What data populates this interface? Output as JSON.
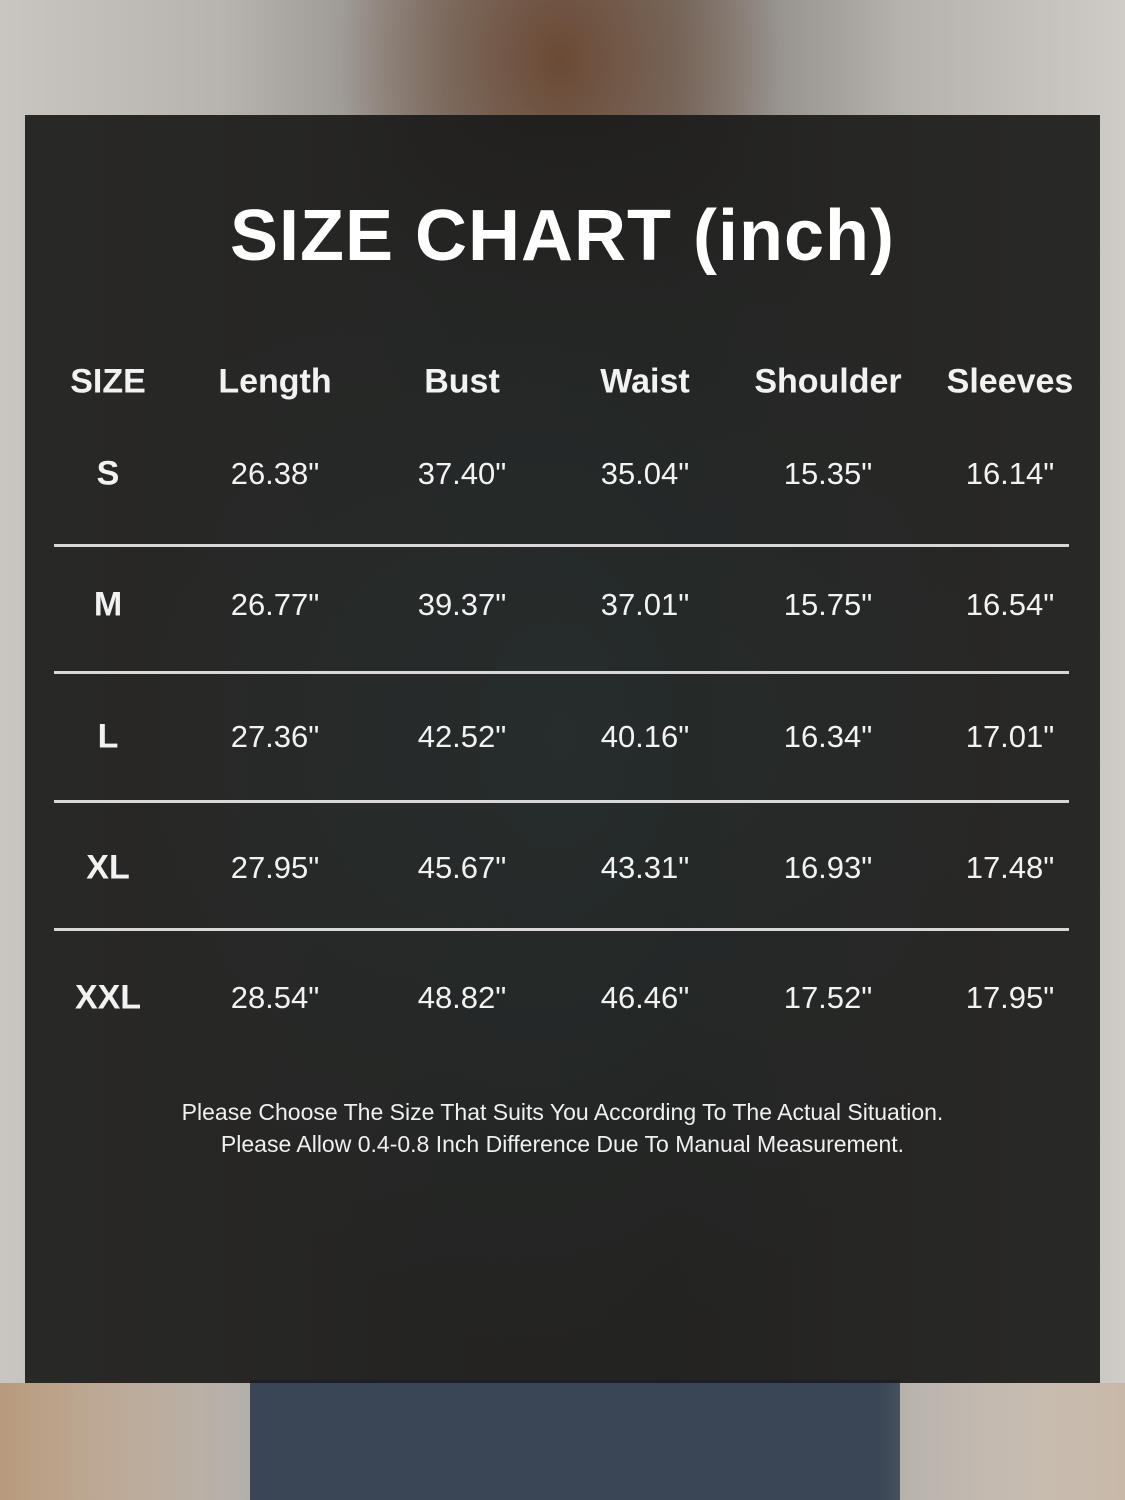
{
  "title": "SIZE CHART (inch)",
  "colors": {
    "panel": "#1c1c1b",
    "text": "#ffffff",
    "divider": "#d8d8d8"
  },
  "table": {
    "headers": [
      "SIZE",
      "Length",
      "Bust",
      "Waist",
      "Shoulder",
      "Sleeves"
    ],
    "rows": [
      [
        "S",
        "26.38\"",
        "37.40\"",
        "35.04\"",
        "15.35\"",
        "16.14\""
      ],
      [
        "M",
        "26.77\"",
        "39.37\"",
        "37.01\"",
        "15.75\"",
        "16.54\""
      ],
      [
        "L",
        "27.36\"",
        "42.52\"",
        "40.16\"",
        "16.34\"",
        "17.01\""
      ],
      [
        "XL",
        "27.95\"",
        "45.67\"",
        "43.31\"",
        "16.93\"",
        "17.48\""
      ],
      [
        "XXL",
        "28.54\"",
        "48.82\"",
        "46.46\"",
        "17.52\"",
        "17.95\""
      ]
    ]
  },
  "notes": [
    "Please Choose The Size That Suits You According To The Actual Situation.",
    "Please Allow 0.4-0.8 Inch Difference Due To Manual Measurement."
  ]
}
